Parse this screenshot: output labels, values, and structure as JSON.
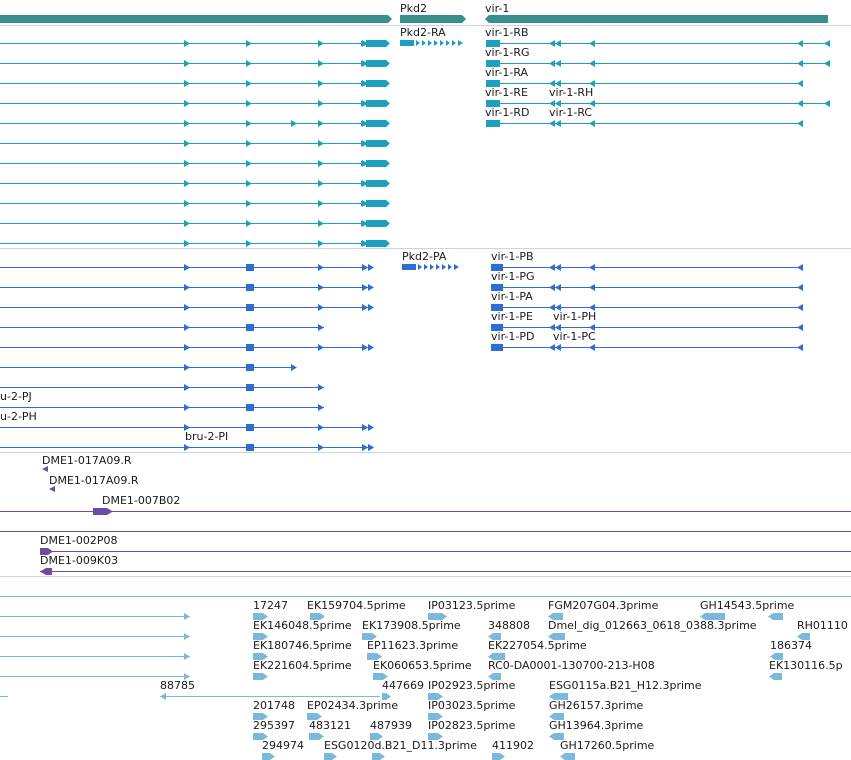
{
  "colors": {
    "gene": "#3b8e8e",
    "transcript": "#1f9fc0",
    "protein": "#2e6dd1",
    "clone": "#6a4ca3",
    "est": "#7ab9dc",
    "divider": "#c8d7df"
  },
  "tracks": {
    "genes": {
      "pkd2": "Pkd2",
      "vir1": "vir-1"
    },
    "transcripts": {
      "pkd2_ra": "Pkd2-RA",
      "vir1": [
        "vir-1-RB",
        "vir-1-RG",
        "vir-1-RA",
        "vir-1-RE",
        "vir-1-RD"
      ],
      "vir1_right": [
        "vir-1-RH",
        "vir-1-RC"
      ]
    },
    "proteins": {
      "pkd2_pa": "Pkd2-PA",
      "vir1": [
        "vir-1-PB",
        "vir-1-PG",
        "vir-1-PA",
        "vir-1-PE",
        "vir-1-PD"
      ],
      "vir1_right": [
        "vir-1-PH",
        "vir-1-PC"
      ],
      "bru2": [
        "u-2-PJ",
        "u-2-PH",
        "bru-2-PI"
      ]
    },
    "clones": [
      "DME1-017A09.R",
      "DME1-017A09.R",
      "DME1-007B02",
      "DME1-002P08",
      "DME1-009K03"
    ],
    "ests": [
      "17247",
      "EK159704.5prime",
      "IP03123.5prime",
      "FGM207G04.3prime",
      "GH14543.5prime",
      "EK146048.5prime",
      "EK173908.5prime",
      "348808",
      "Dmel_dig_012663_0618_0388.3prime",
      "RH01110",
      "EK180746.5prime",
      "EP11623.3prime",
      "EK227054.5prime",
      "186374",
      "EK221604.5prime",
      "EK060653.5prime",
      "RC0-DA0001-130700-213-H08",
      "EK130116.5p",
      "88785",
      "447669",
      "IP02923.5prime",
      "ESG0115a.B21_H12.3prime",
      "201748",
      "EP02434.3prime",
      "IP03023.5prime",
      "GH26157.3prime",
      "295397",
      "483121",
      "487939",
      "IP02823.5prime",
      "GH13964.3prime",
      "294974",
      "ESG0120d.B21_D11.3prime",
      "411902",
      "GH17260.5prime"
    ]
  }
}
